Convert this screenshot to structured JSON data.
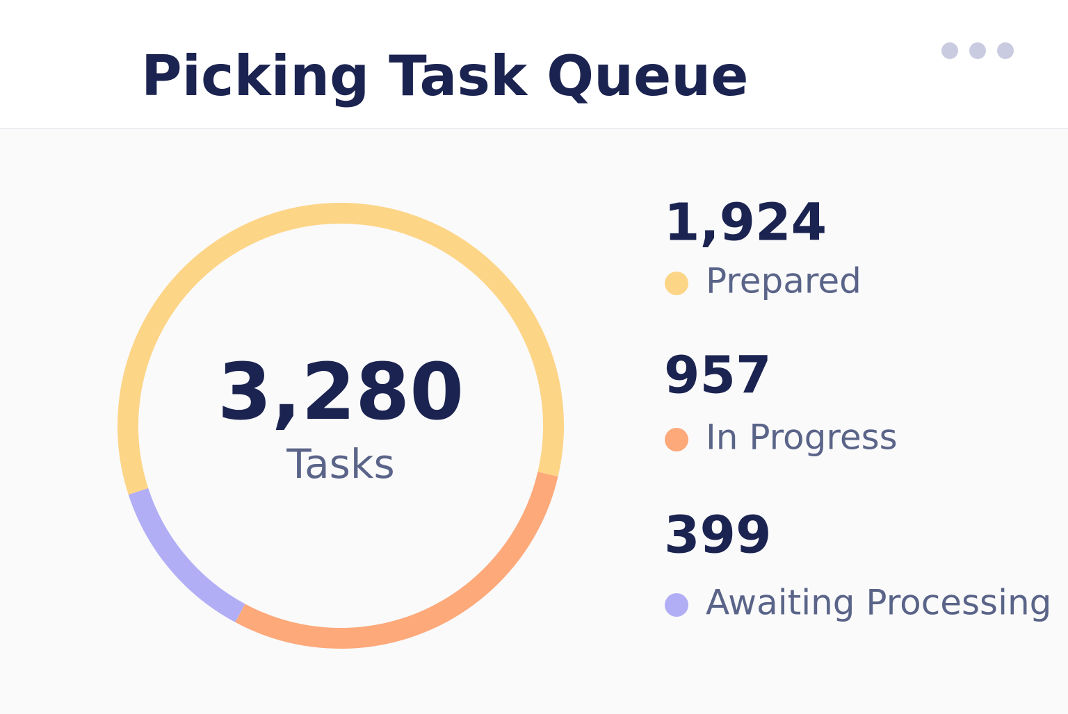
{
  "chart_data": {
    "type": "donut",
    "title": "Picking Task Queue",
    "categories": [
      "Prepared",
      "In Progress",
      "Awaiting Processing"
    ],
    "values": [
      1924,
      957,
      399
    ],
    "value_labels": [
      "1,924",
      "957",
      "399"
    ],
    "colors": [
      "#fdd587",
      "#fda97a",
      "#b1aef5"
    ],
    "total": 3280,
    "total_label": "3,280",
    "center_text": "Tasks"
  }
}
